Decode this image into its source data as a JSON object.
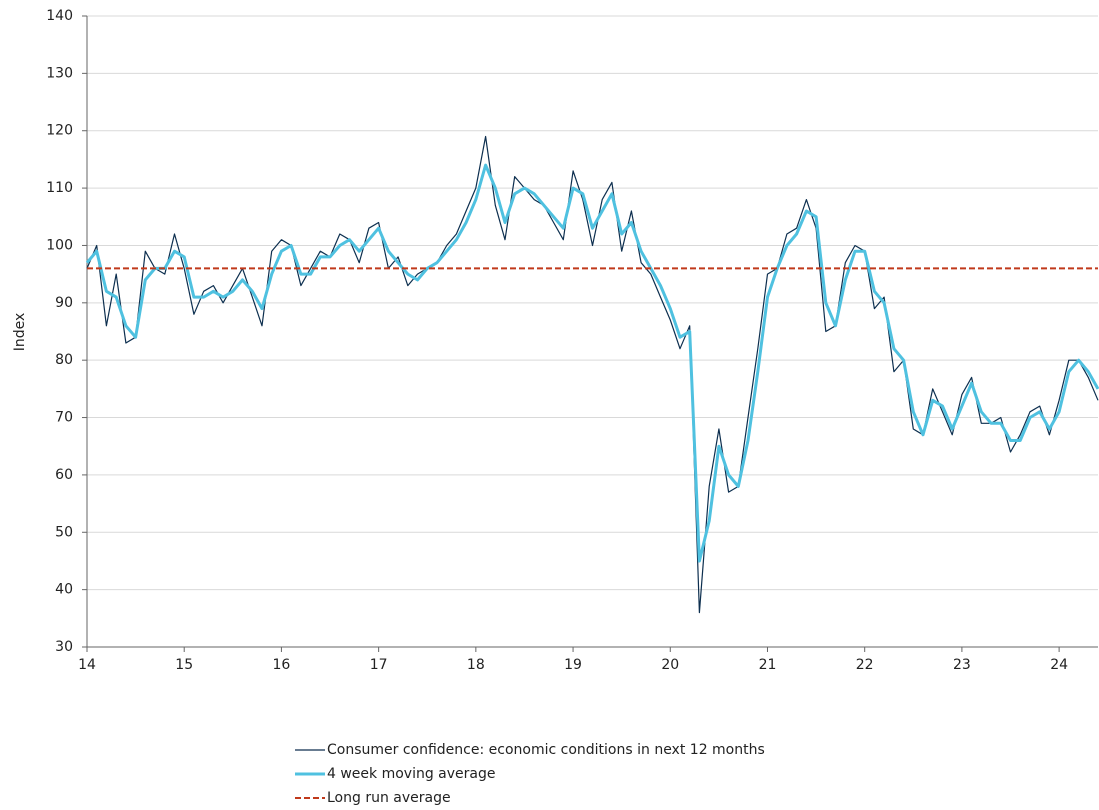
{
  "chart_data": {
    "type": "line",
    "y_label": "Index",
    "x": [
      14.0,
      14.1,
      14.2,
      14.3,
      14.4,
      14.5,
      14.6,
      14.7,
      14.8,
      14.9,
      15.0,
      15.1,
      15.2,
      15.3,
      15.4,
      15.5,
      15.6,
      15.7,
      15.8,
      15.9,
      16.0,
      16.1,
      16.2,
      16.3,
      16.4,
      16.5,
      16.6,
      16.7,
      16.8,
      16.9,
      17.0,
      17.1,
      17.2,
      17.3,
      17.4,
      17.5,
      17.6,
      17.7,
      17.8,
      17.9,
      18.0,
      18.1,
      18.2,
      18.3,
      18.4,
      18.5,
      18.6,
      18.7,
      18.8,
      18.9,
      19.0,
      19.1,
      19.2,
      19.3,
      19.4,
      19.5,
      19.6,
      19.7,
      19.8,
      19.9,
      20.0,
      20.1,
      20.2,
      20.3,
      20.4,
      20.5,
      20.6,
      20.7,
      20.8,
      20.9,
      21.0,
      21.1,
      21.2,
      21.3,
      21.4,
      21.5,
      21.6,
      21.7,
      21.8,
      21.9,
      22.0,
      22.1,
      22.2,
      22.3,
      22.4,
      22.5,
      22.6,
      22.7,
      22.8,
      22.9,
      23.0,
      23.1,
      23.2,
      23.3,
      23.4,
      23.5,
      23.6,
      23.7,
      23.8,
      23.9,
      24.0,
      24.1,
      24.2,
      24.3,
      24.4
    ],
    "series": [
      {
        "name": "Consumer confidence: economic conditions in next 12 months",
        "color": "#0d2f4f",
        "width": 1.2,
        "values": [
          96,
          100,
          86,
          95,
          83,
          84,
          99,
          96,
          95,
          102,
          96,
          88,
          92,
          93,
          90,
          93,
          96,
          91,
          86,
          99,
          101,
          100,
          93,
          96,
          99,
          98,
          102,
          101,
          97,
          103,
          104,
          96,
          98,
          93,
          95,
          96,
          97,
          100,
          102,
          106,
          110,
          119,
          107,
          101,
          112,
          110,
          108,
          107,
          104,
          101,
          113,
          108,
          100,
          108,
          111,
          99,
          106,
          97,
          95,
          91,
          87,
          82,
          86,
          36,
          58,
          68,
          57,
          58,
          70,
          82,
          95,
          96,
          102,
          103,
          108,
          103,
          85,
          86,
          97,
          100,
          99,
          89,
          91,
          78,
          80,
          68,
          67,
          75,
          71,
          67,
          74,
          77,
          69,
          69,
          70,
          64,
          67,
          71,
          72,
          67,
          73,
          80,
          80,
          77,
          73
        ]
      },
      {
        "name": "4 week moving average",
        "color": "#4fc1e0",
        "width": 3,
        "values": [
          97,
          99,
          92,
          91,
          86,
          84,
          94,
          96,
          96,
          99,
          98,
          91,
          91,
          92,
          91,
          92,
          94,
          92,
          89,
          95,
          99,
          100,
          95,
          95,
          98,
          98,
          100,
          101,
          99,
          101,
          103,
          99,
          97,
          95,
          94,
          96,
          97,
          99,
          101,
          104,
          108,
          114,
          110,
          104,
          109,
          110,
          109,
          107,
          105,
          103,
          110,
          109,
          103,
          106,
          109,
          102,
          104,
          99,
          96,
          93,
          89,
          84,
          85,
          45,
          52,
          65,
          60,
          58,
          66,
          78,
          91,
          96,
          100,
          102,
          106,
          105,
          90,
          86,
          94,
          99,
          99,
          92,
          90,
          82,
          80,
          71,
          67,
          73,
          72,
          68,
          72,
          76,
          71,
          69,
          69,
          66,
          66,
          70,
          71,
          68,
          71,
          78,
          80,
          78,
          75
        ]
      }
    ],
    "long_run": {
      "name": "Long run average",
      "color": "#c0391b",
      "value": 96
    },
    "xlim": [
      14,
      24.4
    ],
    "xticks": [
      14,
      15,
      16,
      17,
      18,
      19,
      20,
      21,
      22,
      23,
      24
    ],
    "ylim": [
      30,
      140
    ],
    "yticks": [
      30,
      40,
      50,
      60,
      70,
      80,
      90,
      100,
      110,
      120,
      130,
      140
    ],
    "grid": true
  }
}
